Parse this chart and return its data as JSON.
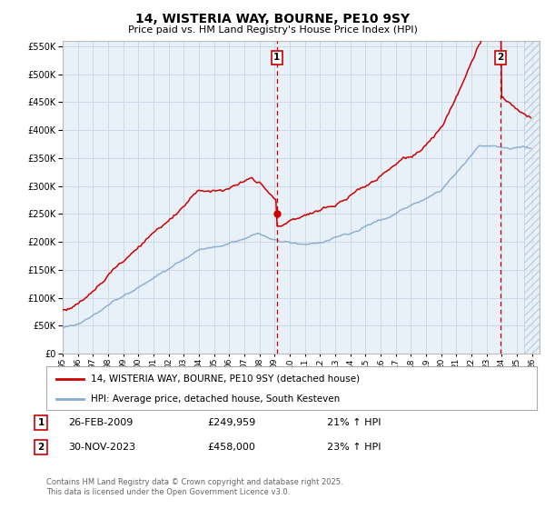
{
  "title": "14, WISTERIA WAY, BOURNE, PE10 9SY",
  "subtitle": "Price paid vs. HM Land Registry's House Price Index (HPI)",
  "legend_line1": "14, WISTERIA WAY, BOURNE, PE10 9SY (detached house)",
  "legend_line2": "HPI: Average price, detached house, South Kesteven",
  "annotation1_date": "26-FEB-2009",
  "annotation1_price": "£249,959",
  "annotation1_hpi": "21% ↑ HPI",
  "annotation2_date": "30-NOV-2023",
  "annotation2_price": "£458,000",
  "annotation2_hpi": "23% ↑ HPI",
  "footer": "Contains HM Land Registry data © Crown copyright and database right 2025.\nThis data is licensed under the Open Government Licence v3.0.",
  "ylim": [
    0,
    560000
  ],
  "xlim_start": 1995.0,
  "xlim_end": 2026.5,
  "vline1_x": 2009.15,
  "vline2_x": 2023.92,
  "point1_y": 249959,
  "point2_y": 458000,
  "red_color": "#cc0000",
  "blue_color": "#88aacc",
  "grid_color": "#ccd9e8",
  "plot_bg": "#e8f0f8",
  "hatch_start": 2025.5,
  "title_fontsize": 10,
  "subtitle_fontsize": 8
}
